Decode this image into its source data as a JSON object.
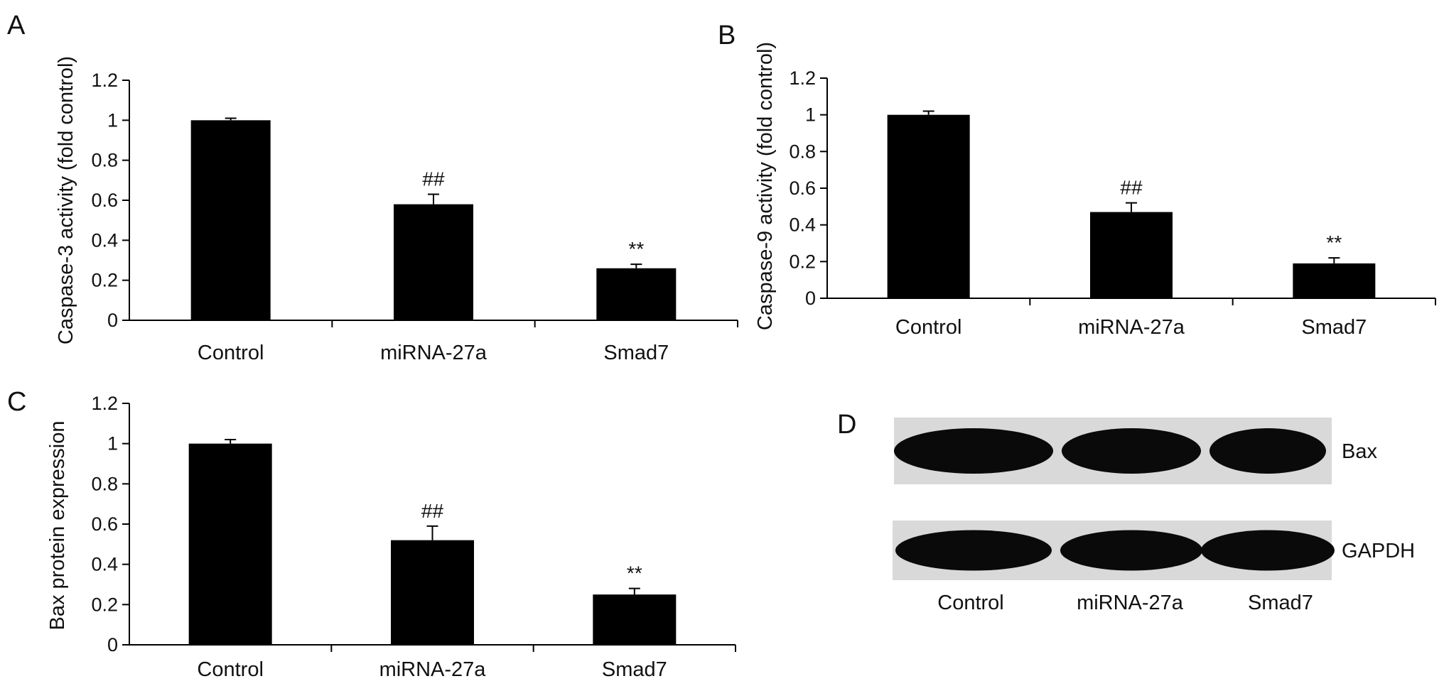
{
  "colors": {
    "bar": "#000000",
    "axis": "#000000",
    "text": "#111111",
    "blot_bg": "#d9d9d9",
    "band": "#0a0a0a"
  },
  "chart_data": [
    {
      "panel": "A",
      "type": "bar",
      "categories": [
        "Control",
        "miRNA-27a",
        "Smad7"
      ],
      "values": [
        1.0,
        0.58,
        0.26
      ],
      "errors": [
        0.01,
        0.05,
        0.02
      ],
      "annotations": [
        "",
        "##",
        "**"
      ],
      "ylabel": "Caspase-3 activity (fold control)",
      "ylim": [
        0,
        1.2
      ],
      "yticks": [
        "0",
        "0.2",
        "0.4",
        "0.6",
        "0.8",
        "1",
        "1.2"
      ]
    },
    {
      "panel": "B",
      "type": "bar",
      "categories": [
        "Control",
        "miRNA-27a",
        "Smad7"
      ],
      "values": [
        1.0,
        0.47,
        0.19
      ],
      "errors": [
        0.02,
        0.05,
        0.03
      ],
      "annotations": [
        "",
        "##",
        "**"
      ],
      "ylabel": "Caspase-9 activity (fold control)",
      "ylim": [
        0,
        1.2
      ],
      "yticks": [
        "0",
        "0.2",
        "0.4",
        "0.6",
        "0.8",
        "1",
        "1.2"
      ]
    },
    {
      "panel": "C",
      "type": "bar",
      "categories": [
        "Control",
        "miRNA-27a",
        "Smad7"
      ],
      "values": [
        1.0,
        0.52,
        0.25
      ],
      "errors": [
        0.02,
        0.07,
        0.03
      ],
      "annotations": [
        "",
        "##",
        "**"
      ],
      "ylabel": "Bax protein expression",
      "ylim": [
        0,
        1.2
      ],
      "yticks": [
        "0",
        "0.2",
        "0.4",
        "0.6",
        "0.8",
        "1",
        "1.2"
      ]
    }
  ],
  "blot": {
    "panel": "D",
    "rows": [
      "Bax",
      "GAPDH"
    ],
    "lanes": [
      "Control",
      "miRNA-27a",
      "Smad7"
    ]
  }
}
